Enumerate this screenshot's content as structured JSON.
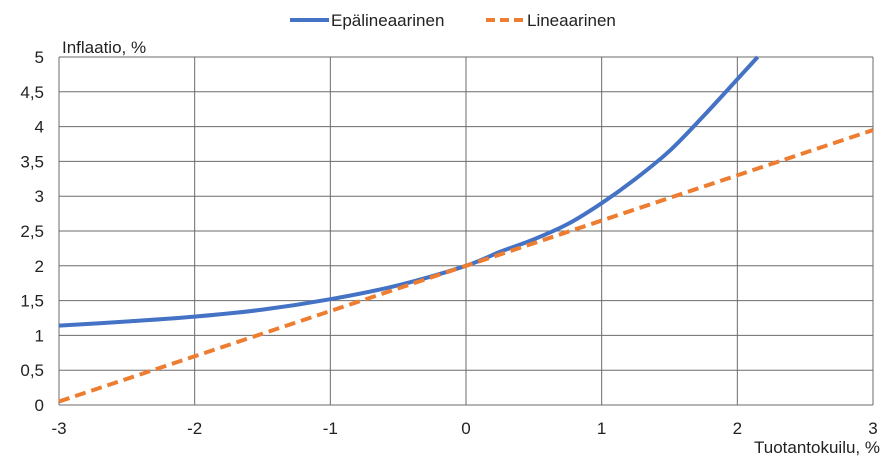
{
  "chart_data": {
    "type": "line",
    "xlabel": "Tuotantokuilu, %",
    "ylabel": "Inflaatio, %",
    "xlim": [
      -3,
      3
    ],
    "ylim": [
      0,
      5
    ],
    "xticks": [
      -3,
      -2,
      -1,
      0,
      1,
      2,
      3
    ],
    "yticks": [
      0,
      0.5,
      1,
      1.5,
      2,
      2.5,
      3,
      3.5,
      4,
      4.5,
      5
    ],
    "xtick_labels": [
      "-3",
      "-2",
      "-1",
      "0",
      "1",
      "2",
      "3"
    ],
    "ytick_labels": [
      "0",
      "0,5",
      "1",
      "1,5",
      "2",
      "2,5",
      "3",
      "3,5",
      "4",
      "4,5",
      "5"
    ],
    "grid": true,
    "legend_position": "top-center",
    "series": [
      {
        "name": "Epälineaarinen",
        "color": "#4472C4",
        "style": "solid",
        "x": [
          -3,
          -2.5,
          -2,
          -1.5,
          -1,
          -0.5,
          0,
          0.25,
          0.5,
          0.75,
          1,
          1.25,
          1.5,
          1.75,
          2,
          2.15
        ],
        "y": [
          1.14,
          1.2,
          1.27,
          1.37,
          1.52,
          1.72,
          2.0,
          2.2,
          2.38,
          2.6,
          2.9,
          3.25,
          3.65,
          4.15,
          4.68,
          5.0
        ]
      },
      {
        "name": "Lineaarinen",
        "color": "#ED7D31",
        "style": "dashed",
        "x": [
          -3,
          3
        ],
        "y": [
          0.05,
          3.95
        ]
      }
    ]
  }
}
